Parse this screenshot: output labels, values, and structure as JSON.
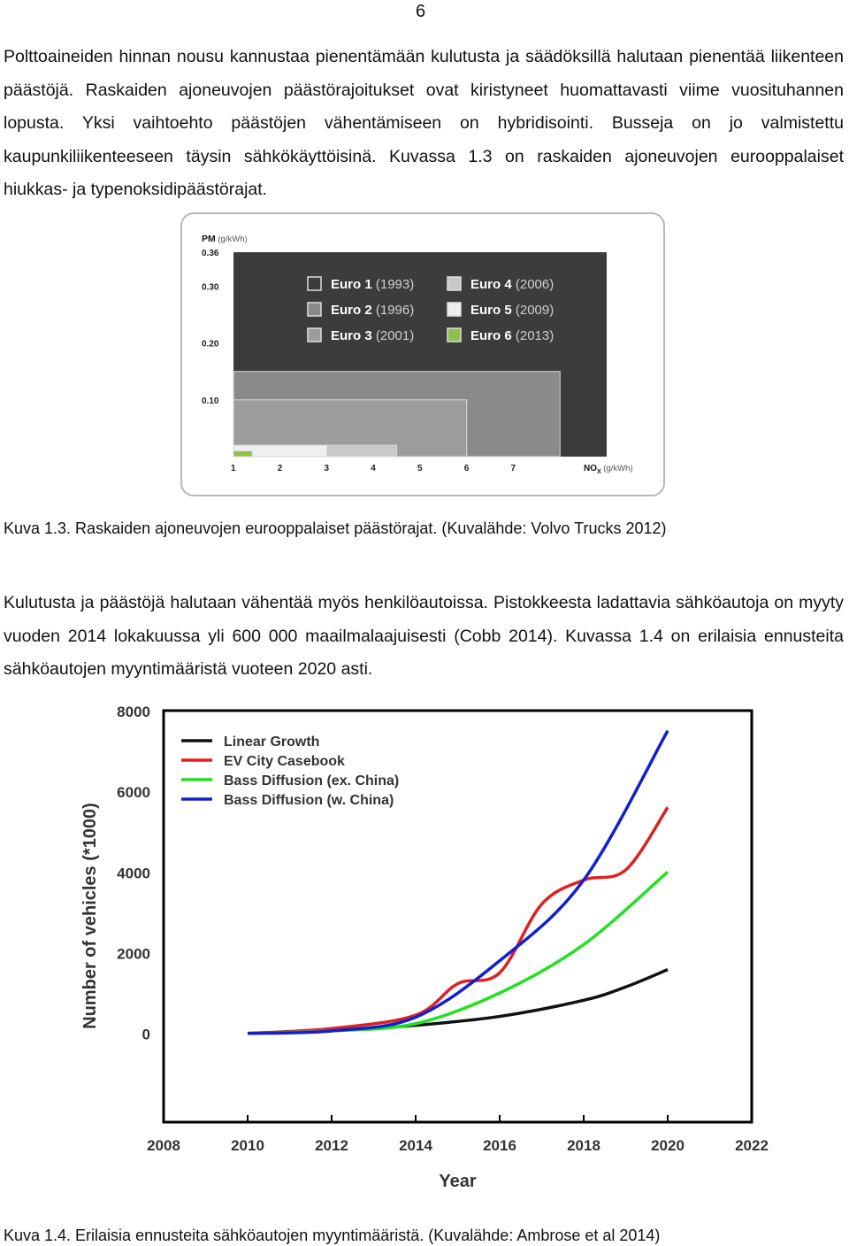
{
  "page_number": "6",
  "paragraph1": "Polttoaineiden hinnan nousu kannustaa pienentämään kulutusta ja säädöksillä halutaan pienentää liikenteen päästöjä. Raskaiden ajoneuvojen päästörajoitukset ovat kiristyneet huomattavasti viime vuosituhannen lopusta. Yksi vaihtoehto päästöjen vähentämiseen on hybridisointi. Busseja on jo valmistettu kaupunkiliikenteeseen täysin sähkökäyttöisinä. Kuvassa 1.3 on raskaiden ajoneuvojen eurooppalaiset hiukkas- ja typenoksidipäästörajat.",
  "caption1": "Kuva 1.3. Raskaiden ajoneuvojen eurooppalaiset päästörajat. (Kuvalähde: Volvo Trucks 2012)",
  "paragraph2": "Kulutusta ja päästöjä halutaan vähentää myös henkilöautoissa. Pistokkeesta ladattavia sähköautoja on myyty vuoden 2014 lokakuussa yli 600 000 maailmalaajuisesti (Cobb 2014). Kuvassa 1.4 on erilaisia ennusteita sähköautojen myyntimääristä vuoteen 2020 asti.",
  "caption2": "Kuva 1.4. Erilaisia ennusteita sähköautojen myyntimääristä. (Kuvalähde: Ambrose et al 2014)",
  "chart_data": [
    {
      "type": "area",
      "ylabel_main": "PM",
      "ylabel_unit": "(g/kWh)",
      "xlabel_main": "NO",
      "xlabel_sub": "X",
      "xlabel_unit": "(g/kWh)",
      "yticks": [
        "0.10",
        "0.20",
        "0.30",
        "0.36"
      ],
      "xticks": [
        "1",
        "2",
        "3",
        "4",
        "5",
        "6",
        "7"
      ],
      "xlim": [
        0,
        8
      ],
      "ylim": [
        0,
        0.36
      ],
      "grid": false,
      "legend_position": "top",
      "series": [
        {
          "name": "Euro 1",
          "year": "(1993)",
          "nox": 8.0,
          "pm": 0.36,
          "color": "#3c3c3c"
        },
        {
          "name": "Euro 2",
          "year": "(1996)",
          "nox": 7.0,
          "pm": 0.15,
          "color": "#8a8a8a"
        },
        {
          "name": "Euro 3",
          "year": "(2001)",
          "nox": 5.0,
          "pm": 0.1,
          "color": "#9c9c9c"
        },
        {
          "name": "Euro 4",
          "year": "(2006)",
          "nox": 3.5,
          "pm": 0.02,
          "color": "#c8c8c8"
        },
        {
          "name": "Euro 5",
          "year": "(2009)",
          "nox": 2.0,
          "pm": 0.02,
          "color": "#efefef"
        },
        {
          "name": "Euro 6",
          "year": "(2013)",
          "nox": 0.4,
          "pm": 0.01,
          "color": "#8fbf4a"
        }
      ]
    },
    {
      "type": "line",
      "xlabel": "Year",
      "ylabel": "Number of vehicles (*1000)",
      "xticks": [
        "2008",
        "2010",
        "2012",
        "2014",
        "2016",
        "2018",
        "2020",
        "2022"
      ],
      "yticks": [
        "0",
        "2000",
        "4000",
        "6000",
        "8000"
      ],
      "xlim": [
        2008,
        2022
      ],
      "ylim": [
        -2200,
        8000
      ],
      "grid": false,
      "legend_position": "top-left",
      "series": [
        {
          "name": "Linear Growth",
          "color": "#111111",
          "points": [
            [
              2010,
              0
            ],
            [
              2012,
              70
            ],
            [
              2014,
              200
            ],
            [
              2016,
              420
            ],
            [
              2018,
              820
            ],
            [
              2019,
              1150
            ],
            [
              2020,
              1580
            ]
          ]
        },
        {
          "name": "EV City Casebook",
          "color": "#e02020",
          "points": [
            [
              2010,
              0
            ],
            [
              2012,
              120
            ],
            [
              2014,
              450
            ],
            [
              2015,
              1230
            ],
            [
              2016,
              1500
            ],
            [
              2017,
              3200
            ],
            [
              2018,
              3800
            ],
            [
              2019,
              4050
            ],
            [
              2020,
              5600
            ]
          ]
        },
        {
          "name": "Bass Diffusion (ex. China)",
          "color": "#22e022",
          "points": [
            [
              2010,
              0
            ],
            [
              2012,
              60
            ],
            [
              2014,
              240
            ],
            [
              2016,
              1000
            ],
            [
              2018,
              2200
            ],
            [
              2020,
              4000
            ]
          ]
        },
        {
          "name": "Bass Diffusion (w. China)",
          "color": "#1020d0",
          "points": [
            [
              2010,
              0
            ],
            [
              2012,
              60
            ],
            [
              2014,
              400
            ],
            [
              2016,
              1800
            ],
            [
              2018,
              3800
            ],
            [
              2020,
              7500
            ]
          ]
        }
      ]
    }
  ]
}
